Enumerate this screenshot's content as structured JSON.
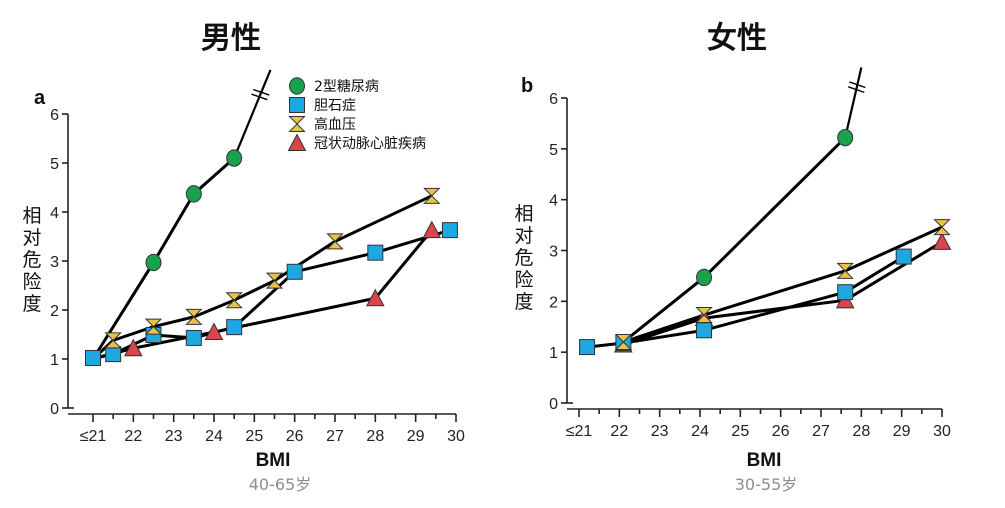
{
  "colors": {
    "diabetes": "#1aa14e",
    "gallstone": "#1ea7e1",
    "hypertension": "#e9c24a",
    "chd": "#d9454a"
  },
  "legend": [
    {
      "key": "diabetes",
      "label": "2型糖尿病",
      "marker": "circle"
    },
    {
      "key": "gallstone",
      "label": "胆石症",
      "marker": "square"
    },
    {
      "key": "hypertension",
      "label": "高血压",
      "marker": "hourglass"
    },
    {
      "key": "chd",
      "label": "冠状动脉心脏疾病",
      "marker": "triangle"
    }
  ],
  "chart_data": [
    {
      "type": "line",
      "panel": "a",
      "title": "男性",
      "xlabel": "BMI",
      "xsublabel": "40-65岁",
      "ylabel": "相对危险度",
      "xlim": [
        21,
        30
      ],
      "ylim": [
        0,
        6
      ],
      "xticks": [
        21,
        22,
        23,
        24,
        25,
        26,
        27,
        28,
        29,
        30
      ],
      "xtick_labels": [
        "≤21",
        "22",
        "23",
        "24",
        "25",
        "26",
        "27",
        "28",
        "29",
        "30"
      ],
      "yticks": [
        0,
        1,
        2,
        3,
        4,
        5,
        6
      ],
      "ytick_labels": [
        "0",
        "1",
        "2",
        "3",
        "4",
        "5",
        "6"
      ],
      "legend_position": "top-right",
      "axis_break": {
        "series": "diabetes",
        "note": "line continues beyond 6 (axis break)"
      },
      "series": [
        {
          "key": "diabetes",
          "name": "2型糖尿病",
          "points": [
            [
              21,
              1.0
            ],
            [
              22.5,
              2.97
            ],
            [
              23.5,
              4.37
            ],
            [
              24.5,
              5.1
            ]
          ],
          "continues_to": [
            25.4,
            6.9
          ]
        },
        {
          "key": "gallstone",
          "name": "胆石症",
          "points": [
            [
              21,
              1.02
            ],
            [
              21.5,
              1.1
            ],
            [
              22.5,
              1.49
            ],
            [
              23.5,
              1.43
            ],
            [
              24.5,
              1.65
            ],
            [
              26,
              2.78
            ],
            [
              28,
              3.17
            ],
            [
              29.85,
              3.63
            ]
          ]
        },
        {
          "key": "hypertension",
          "name": "高血压",
          "points": [
            [
              21,
              1.0
            ],
            [
              21.5,
              1.38
            ],
            [
              22.5,
              1.66
            ],
            [
              23.5,
              1.86
            ],
            [
              24.5,
              2.2
            ],
            [
              25.5,
              2.6
            ],
            [
              27,
              3.4
            ],
            [
              29.4,
              4.33
            ]
          ]
        },
        {
          "key": "chd",
          "name": "冠状动脉心脏疾病",
          "points": [
            [
              21,
              1.0
            ],
            [
              22,
              1.22
            ],
            [
              24,
              1.55
            ],
            [
              28,
              2.24
            ],
            [
              29.4,
              3.63
            ]
          ]
        }
      ]
    },
    {
      "type": "line",
      "panel": "b",
      "title": "女性",
      "xlabel": "BMI",
      "xsublabel": "30-55岁",
      "ylabel": "相对危险度",
      "xlim": [
        21,
        30
      ],
      "ylim": [
        0,
        6
      ],
      "xticks": [
        21,
        22,
        23,
        24,
        25,
        26,
        27,
        28,
        29,
        30
      ],
      "xtick_labels": [
        "≤21",
        "22",
        "23",
        "24",
        "25",
        "26",
        "27",
        "28",
        "29",
        "30"
      ],
      "yticks": [
        0,
        1,
        2,
        3,
        4,
        5,
        6
      ],
      "ytick_labels": [
        "0",
        "1",
        "2",
        "3",
        "4",
        "5",
        "6"
      ],
      "axis_break": {
        "series": "diabetes",
        "note": "line continues beyond 6 (axis break)"
      },
      "series": [
        {
          "key": "diabetes",
          "name": "2型糖尿病",
          "points": [
            [
              22.1,
              1.2
            ],
            [
              24.1,
              2.47
            ],
            [
              27.6,
              5.22
            ]
          ],
          "continues_to": [
            28.0,
            6.6
          ]
        },
        {
          "key": "gallstone",
          "name": "胆石症",
          "points": [
            [
              21.2,
              1.1
            ],
            [
              22.1,
              1.18
            ],
            [
              24.1,
              1.43
            ],
            [
              27.6,
              2.18
            ],
            [
              29.05,
              2.88
            ]
          ]
        },
        {
          "key": "hypertension",
          "name": "高血压",
          "points": [
            [
              22.1,
              1.2
            ],
            [
              24.1,
              1.73
            ],
            [
              27.6,
              2.6
            ],
            [
              30,
              3.46
            ]
          ]
        },
        {
          "key": "chd",
          "name": "冠状动脉心脏疾病",
          "points": [
            [
              22.1,
              1.15
            ],
            [
              24.1,
              1.67
            ],
            [
              27.6,
              2.02
            ],
            [
              30,
              3.17
            ]
          ]
        }
      ]
    }
  ]
}
